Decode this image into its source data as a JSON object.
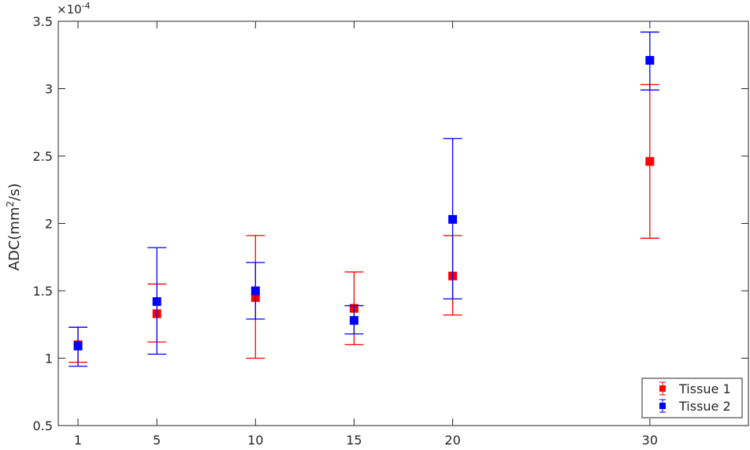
{
  "chart_data": {
    "type": "scatter",
    "title": "",
    "xlabel": "",
    "ylabel": "ADC(mm",
    "ylabel_superscript": "2",
    "ylabel_suffix": "/s)",
    "y_exponent_base": "×10",
    "y_exponent_power": "-4",
    "xlim": [
      0,
      35
    ],
    "ylim": [
      0.5,
      3.5
    ],
    "x_ticks": [
      1,
      5,
      10,
      15,
      20,
      30
    ],
    "y_ticks": [
      0.5,
      1,
      1.5,
      2,
      2.5,
      3,
      3.5
    ],
    "y_tick_labels": [
      "0.5",
      "1",
      "1.5",
      "2",
      "2.5",
      "3",
      "3.5"
    ],
    "grid": false,
    "legend_position": "bottom-right",
    "errorbars": true,
    "series": [
      {
        "name": "Tissue 1",
        "color": "#ff0000",
        "marker": "square",
        "x": [
          1,
          5,
          10,
          15,
          20,
          30
        ],
        "y": [
          1.1,
          1.33,
          1.45,
          1.37,
          1.61,
          2.46
        ],
        "lower": [
          0.97,
          1.12,
          1.0,
          1.1,
          1.32,
          1.89
        ],
        "upper": [
          1.23,
          1.55,
          1.91,
          1.64,
          1.91,
          3.03
        ]
      },
      {
        "name": "Tissue 2",
        "color": "#0000ff",
        "marker": "square",
        "x": [
          1,
          5,
          10,
          15,
          20,
          30
        ],
        "y": [
          1.09,
          1.42,
          1.5,
          1.28,
          2.03,
          3.21
        ],
        "lower": [
          0.94,
          1.03,
          1.29,
          1.18,
          1.44,
          2.99
        ],
        "upper": [
          1.23,
          1.82,
          1.71,
          1.39,
          2.63,
          3.42
        ]
      }
    ]
  }
}
